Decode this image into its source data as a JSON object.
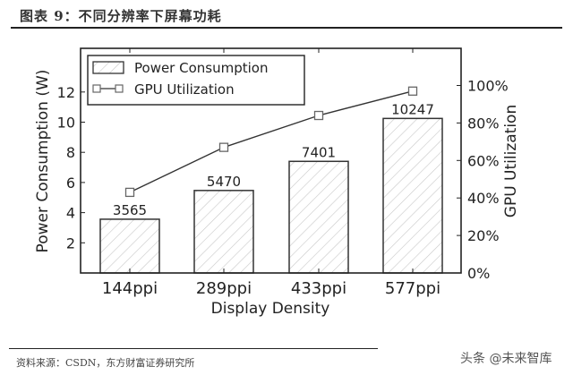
{
  "header": {
    "figure_title": "图表 9：不同分辨率下屏幕功耗"
  },
  "footer": {
    "source": "资料来源：CSDN，东方财富证券研究所",
    "watermark": "头条 @未来智库"
  },
  "colors": {
    "axis": "#222222",
    "bar_fill": "#ffffff",
    "bar_hatch": "#c8c8c8",
    "line": "#333333",
    "marker_edge": "#555555"
  },
  "chart_data": {
    "type": "bar",
    "title": "",
    "categories": [
      "144ppi",
      "289ppi",
      "433ppi",
      "577ppi"
    ],
    "xlabel": "Display Density",
    "ylabel": "Power Consumption (W)",
    "ylabel_right": "GPU Utilization",
    "ylim": [
      0,
      14
    ],
    "ylim_right": [
      0,
      1.2
    ],
    "yticks": [
      2,
      4,
      6,
      8,
      10,
      12
    ],
    "yticks_right": [
      "0%",
      "20%",
      "40%",
      "60%",
      "80%",
      "100%"
    ],
    "series": [
      {
        "name": "Power Consumption",
        "type": "bar",
        "axis": "left",
        "values": [
          3.565,
          5.47,
          7.401,
          10.247
        ],
        "data_labels": [
          "3565",
          "5470",
          "7401",
          "10247"
        ],
        "style": "hatched"
      },
      {
        "name": "GPU Utilization",
        "type": "line",
        "axis": "right",
        "values": [
          0.43,
          0.67,
          0.84,
          0.97
        ],
        "marker": "square"
      }
    ],
    "legend": {
      "position": "upper left",
      "entries": [
        "Power Consumption",
        "GPU Utilization"
      ]
    },
    "grid": false
  }
}
